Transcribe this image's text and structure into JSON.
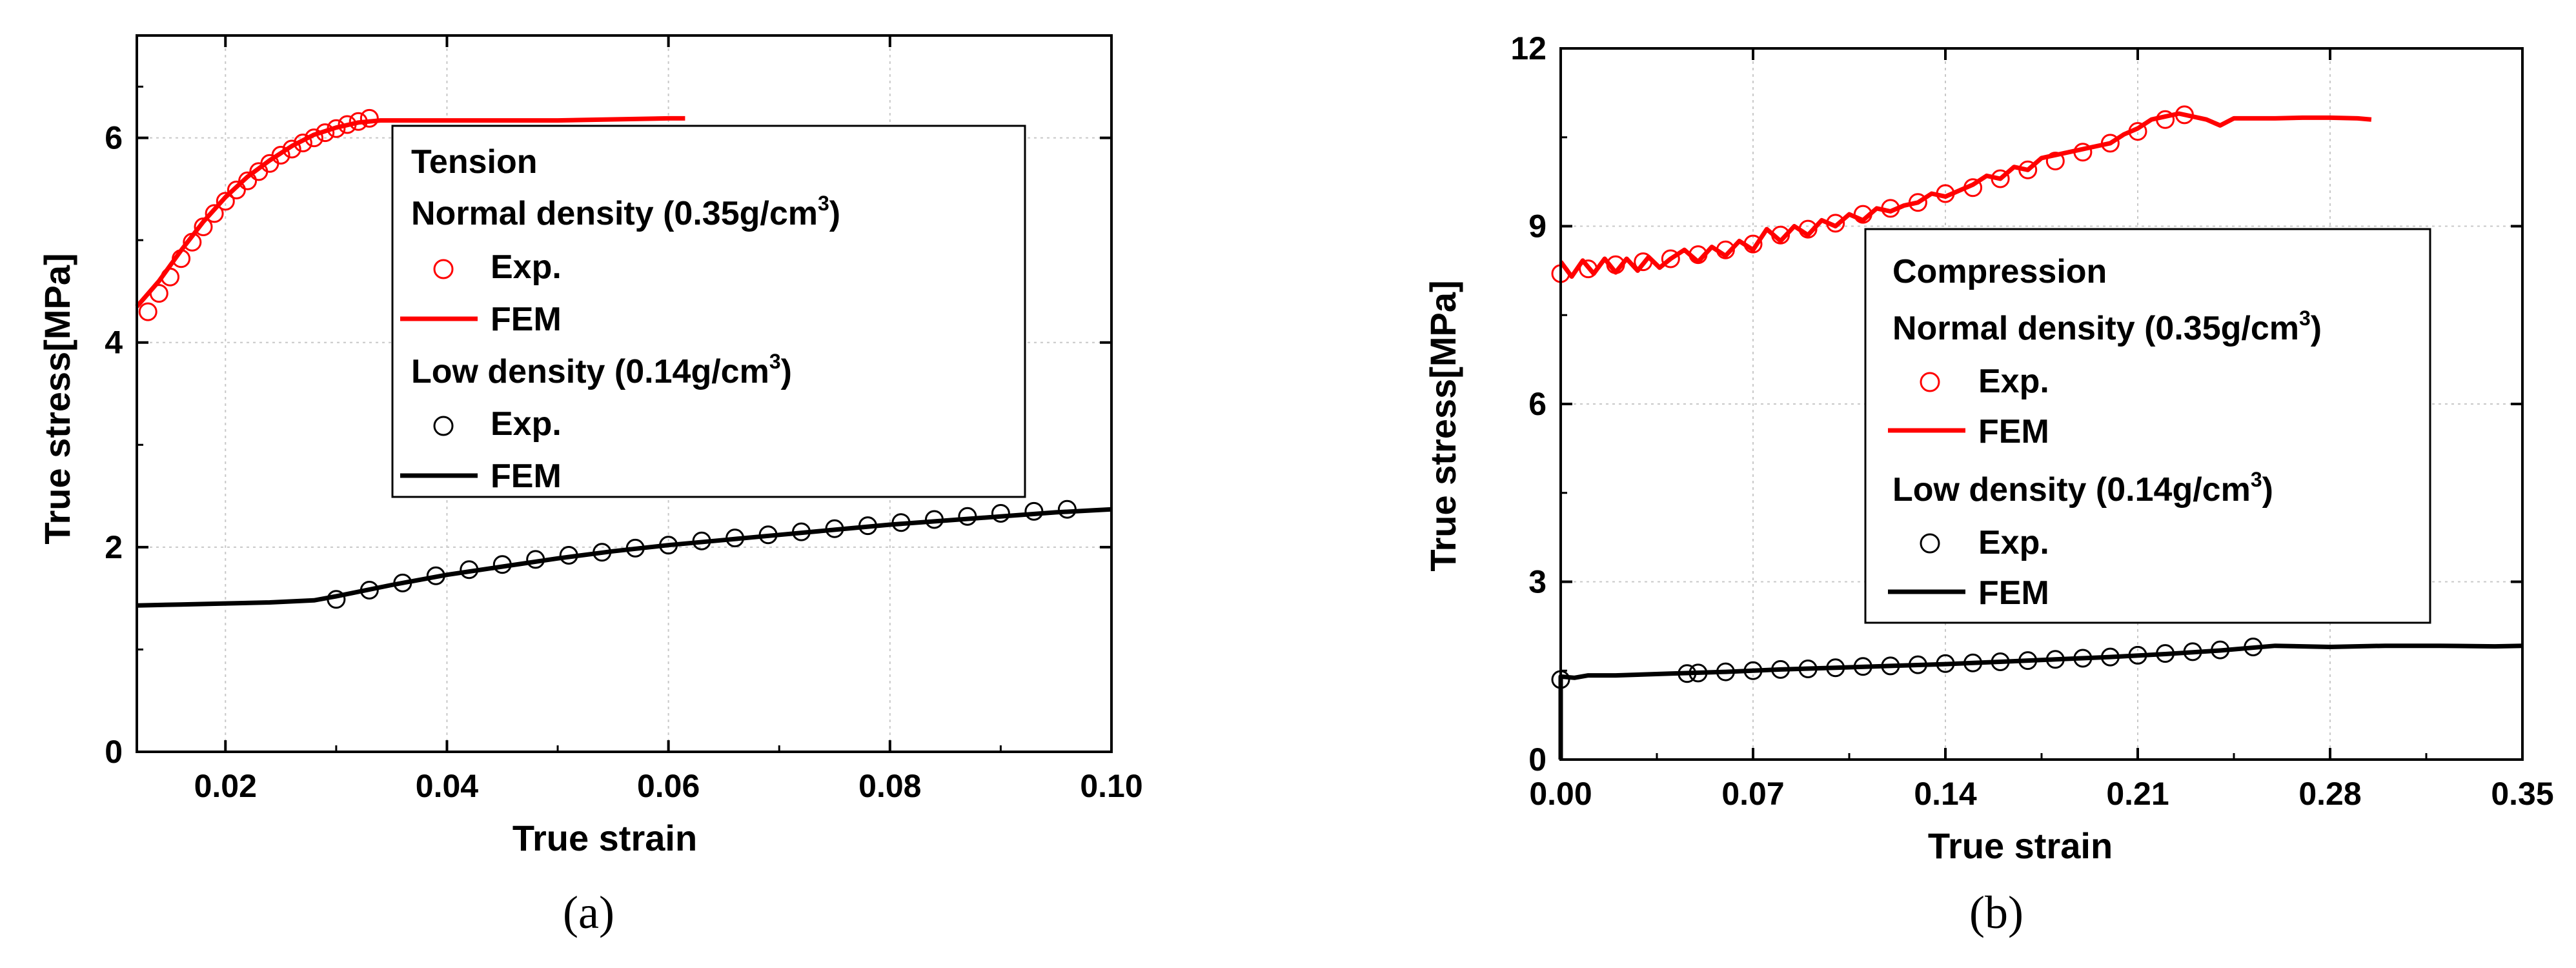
{
  "colors": {
    "normal": "#ff0000",
    "low": "#000000"
  },
  "chart_data": [
    {
      "type": "line",
      "panel_label": "(a)",
      "xlabel": "True strain",
      "ylabel": "True stress[MPa]",
      "xlim": [
        0.012,
        0.1
      ],
      "ylim": [
        0,
        7
      ],
      "xticks": [
        0.02,
        0.04,
        0.06,
        0.08,
        0.1
      ],
      "xtick_labels": [
        "0.02",
        "0.04",
        "0.06",
        "0.08",
        "0.10"
      ],
      "yticks": [
        0,
        2,
        4,
        6
      ],
      "ytick_labels": [
        "0",
        "2",
        "4",
        "6"
      ],
      "legend": {
        "title": "Tension",
        "group1": {
          "label": "Normal density (0.35g/cm",
          "sup": "3",
          "close": ")"
        },
        "group2": {
          "label": "Low density (0.14g/cm",
          "sup": "3",
          "close": ")"
        },
        "exp": "Exp.",
        "fem": "FEM"
      },
      "series": [
        {
          "name": "Normal density Exp.",
          "group": "normal",
          "style": "markers",
          "x": [
            0.013,
            0.014,
            0.015,
            0.016,
            0.017,
            0.018,
            0.019,
            0.02,
            0.021,
            0.022,
            0.023,
            0.024,
            0.025,
            0.026,
            0.027,
            0.028,
            0.029,
            0.03,
            0.031,
            0.032,
            0.033
          ],
          "y": [
            4.3,
            4.48,
            4.64,
            4.82,
            4.98,
            5.13,
            5.26,
            5.38,
            5.49,
            5.58,
            5.67,
            5.75,
            5.83,
            5.89,
            5.95,
            6.0,
            6.05,
            6.09,
            6.13,
            6.16,
            6.19
          ]
        },
        {
          "name": "Normal density FEM",
          "group": "normal",
          "style": "line",
          "x": [
            0.012,
            0.014,
            0.016,
            0.018,
            0.02,
            0.022,
            0.024,
            0.026,
            0.028,
            0.03,
            0.032,
            0.034,
            0.04,
            0.045,
            0.05,
            0.055,
            0.06,
            0.0615
          ],
          "y": [
            4.35,
            4.6,
            4.9,
            5.18,
            5.42,
            5.62,
            5.78,
            5.92,
            6.03,
            6.1,
            6.15,
            6.17,
            6.17,
            6.17,
            6.17,
            6.18,
            6.19,
            6.19
          ]
        },
        {
          "name": "Low density Exp.",
          "group": "low",
          "style": "markers",
          "x": [
            0.03,
            0.033,
            0.036,
            0.039,
            0.042,
            0.045,
            0.048,
            0.051,
            0.054,
            0.057,
            0.06,
            0.063,
            0.066,
            0.069,
            0.072,
            0.075,
            0.078,
            0.081,
            0.084,
            0.087,
            0.09,
            0.093,
            0.096
          ],
          "y": [
            1.49,
            1.58,
            1.65,
            1.72,
            1.78,
            1.83,
            1.88,
            1.92,
            1.95,
            1.99,
            2.02,
            2.06,
            2.09,
            2.12,
            2.15,
            2.18,
            2.21,
            2.24,
            2.27,
            2.3,
            2.33,
            2.35,
            2.37
          ]
        },
        {
          "name": "Low density FEM",
          "group": "low",
          "style": "line",
          "x": [
            0.012,
            0.016,
            0.02,
            0.024,
            0.028,
            0.03,
            0.035,
            0.04,
            0.045,
            0.05,
            0.055,
            0.06,
            0.065,
            0.07,
            0.075,
            0.08,
            0.085,
            0.09,
            0.095,
            0.1
          ],
          "y": [
            1.43,
            1.44,
            1.45,
            1.46,
            1.48,
            1.52,
            1.63,
            1.73,
            1.81,
            1.89,
            1.96,
            2.02,
            2.07,
            2.12,
            2.17,
            2.22,
            2.26,
            2.3,
            2.34,
            2.37
          ]
        }
      ]
    },
    {
      "type": "line",
      "panel_label": "(b)",
      "xlabel": "True strain",
      "ylabel": "True stress[MPa]",
      "xlim": [
        0,
        0.35
      ],
      "ylim": [
        0,
        12
      ],
      "xticks": [
        0,
        0.07,
        0.14,
        0.21,
        0.28,
        0.35
      ],
      "xtick_labels": [
        "0.00",
        "0.07",
        "0.14",
        "0.21",
        "0.28",
        "0.35"
      ],
      "yticks": [
        0,
        3,
        6,
        9,
        12
      ],
      "ytick_labels": [
        "0",
        "3",
        "6",
        "9",
        "12"
      ],
      "legend": {
        "title": "Compression",
        "group1": {
          "label": "Normal density (0.35g/cm",
          "sup": "3",
          "close": ")"
        },
        "group2": {
          "label": "Low density (0.14g/cm",
          "sup": "3",
          "close": ")"
        },
        "exp": "Exp.",
        "fem": "FEM"
      },
      "series": [
        {
          "name": "Normal density Exp.",
          "group": "normal",
          "style": "markers",
          "x": [
            0.0,
            0.01,
            0.02,
            0.03,
            0.04,
            0.05,
            0.06,
            0.07,
            0.08,
            0.09,
            0.1,
            0.11,
            0.12,
            0.13,
            0.14,
            0.15,
            0.16,
            0.17,
            0.18,
            0.19,
            0.2,
            0.21,
            0.22,
            0.227
          ],
          "y": [
            8.2,
            8.28,
            8.35,
            8.4,
            8.45,
            8.52,
            8.6,
            8.7,
            8.85,
            8.95,
            9.05,
            9.2,
            9.3,
            9.4,
            9.55,
            9.65,
            9.8,
            9.95,
            10.1,
            10.25,
            10.4,
            10.6,
            10.8,
            10.88
          ]
        },
        {
          "name": "Normal density FEM",
          "group": "normal",
          "style": "line",
          "x": [
            0.0,
            0.004,
            0.008,
            0.012,
            0.016,
            0.02,
            0.024,
            0.028,
            0.032,
            0.036,
            0.04,
            0.045,
            0.05,
            0.055,
            0.06,
            0.065,
            0.07,
            0.075,
            0.08,
            0.085,
            0.09,
            0.095,
            0.1,
            0.105,
            0.11,
            0.115,
            0.12,
            0.125,
            0.13,
            0.135,
            0.14,
            0.145,
            0.15,
            0.155,
            0.16,
            0.165,
            0.17,
            0.175,
            0.18,
            0.185,
            0.19,
            0.195,
            0.2,
            0.205,
            0.21,
            0.215,
            0.22,
            0.225,
            0.23,
            0.235,
            0.24,
            0.245,
            0.25,
            0.26,
            0.27,
            0.28,
            0.29,
            0.295
          ],
          "y": [
            8.4,
            8.15,
            8.42,
            8.2,
            8.45,
            8.22,
            8.45,
            8.25,
            8.48,
            8.3,
            8.45,
            8.6,
            8.4,
            8.65,
            8.5,
            8.75,
            8.6,
            8.95,
            8.75,
            9.0,
            8.85,
            9.1,
            9.0,
            9.2,
            9.1,
            9.3,
            9.25,
            9.35,
            9.4,
            9.55,
            9.5,
            9.6,
            9.7,
            9.85,
            9.8,
            10.0,
            9.95,
            10.15,
            10.2,
            10.25,
            10.3,
            10.35,
            10.4,
            10.55,
            10.65,
            10.8,
            10.85,
            10.9,
            10.85,
            10.8,
            10.7,
            10.82,
            10.82,
            10.82,
            10.83,
            10.83,
            10.82,
            10.8
          ]
        },
        {
          "name": "Low density Exp.",
          "group": "low",
          "style": "markers",
          "x": [
            0.0,
            0.046,
            0.05,
            0.06,
            0.07,
            0.08,
            0.09,
            0.1,
            0.11,
            0.12,
            0.13,
            0.14,
            0.15,
            0.16,
            0.17,
            0.18,
            0.19,
            0.2,
            0.21,
            0.22,
            0.23,
            0.24,
            0.252
          ],
          "y": [
            1.35,
            1.45,
            1.46,
            1.48,
            1.5,
            1.52,
            1.53,
            1.55,
            1.57,
            1.58,
            1.6,
            1.62,
            1.63,
            1.65,
            1.67,
            1.69,
            1.71,
            1.73,
            1.76,
            1.79,
            1.82,
            1.85,
            1.9
          ]
        },
        {
          "name": "Low density FEM",
          "group": "low",
          "style": "line",
          "x": [
            0.0,
            0.0,
            0.005,
            0.01,
            0.02,
            0.04,
            0.06,
            0.08,
            0.1,
            0.12,
            0.14,
            0.16,
            0.18,
            0.2,
            0.22,
            0.24,
            0.26,
            0.28,
            0.3,
            0.32,
            0.34,
            0.35
          ],
          "y": [
            0.0,
            1.4,
            1.38,
            1.42,
            1.42,
            1.45,
            1.48,
            1.52,
            1.55,
            1.58,
            1.61,
            1.65,
            1.69,
            1.73,
            1.78,
            1.84,
            1.92,
            1.9,
            1.92,
            1.92,
            1.91,
            1.92
          ]
        }
      ]
    }
  ]
}
